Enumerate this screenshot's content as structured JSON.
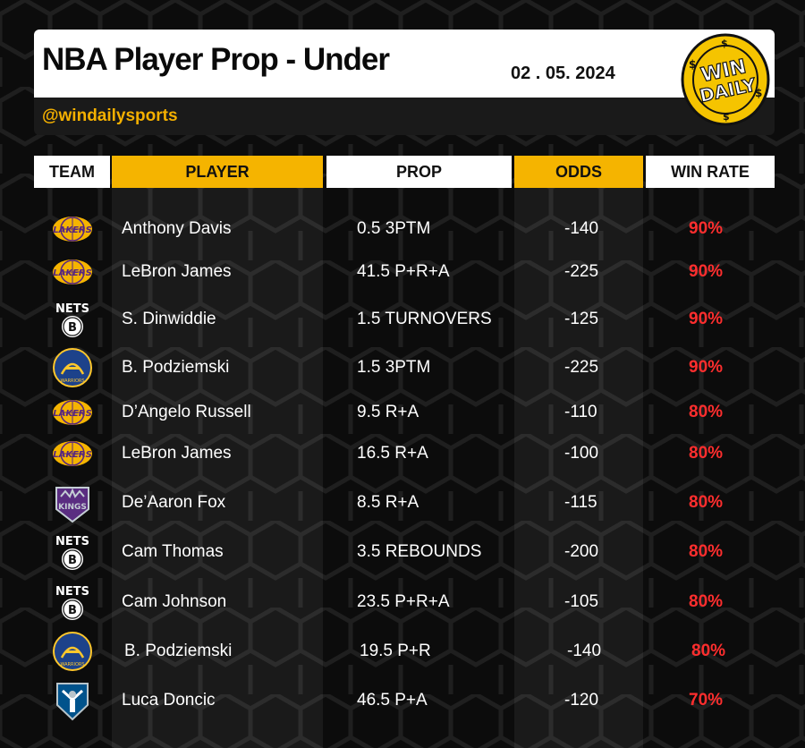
{
  "header": {
    "title": "NBA Player Prop - Under",
    "date": "02 . 05. 2024",
    "handle": "@windailysports",
    "logo_text_line1": "WIN",
    "logo_text_line2": "DAILY"
  },
  "columns": {
    "team": "TEAM",
    "player": "PLAYER",
    "prop": "PROP",
    "odds": "ODDS",
    "win_rate": "WIN RATE"
  },
  "colors": {
    "accent_gold": "#f5b400",
    "rate_red": "#ff2e2e",
    "background": "#0c0c0c"
  },
  "rows": [
    {
      "team": "lakers",
      "player": "Anthony Davis",
      "prop": "0.5 3PTM",
      "odds": "-140",
      "rate": "90%"
    },
    {
      "team": "lakers",
      "player": "LeBron James",
      "prop": "41.5 P+R+A",
      "odds": "-225",
      "rate": "90%"
    },
    {
      "team": "nets",
      "player": "S. Dinwiddie",
      "prop": "1.5 TURNOVERS",
      "odds": "-125",
      "rate": "90%"
    },
    {
      "team": "warriors",
      "player": "B. Podziemski",
      "prop": "1.5 3PTM",
      "odds": "-225",
      "rate": "90%"
    },
    {
      "team": "lakers",
      "player": "D’Angelo Russell",
      "prop": "9.5 R+A",
      "odds": "-110",
      "rate": "80%"
    },
    {
      "team": "lakers",
      "player": "LeBron James",
      "prop": "16.5 R+A",
      "odds": "-100",
      "rate": "80%"
    },
    {
      "team": "kings",
      "player": "De’Aaron Fox",
      "prop": "8.5 R+A",
      "odds": "-115",
      "rate": "80%"
    },
    {
      "team": "nets",
      "player": "Cam Thomas",
      "prop": "3.5 REBOUNDS",
      "odds": "-200",
      "rate": "80%"
    },
    {
      "team": "nets",
      "player": "Cam Johnson",
      "prop": "23.5 P+R+A",
      "odds": "-105",
      "rate": "80%"
    },
    {
      "team": "warriors",
      "player": "B. Podziemski",
      "prop": "19.5 P+R",
      "odds": "-140",
      "rate": "80%"
    },
    {
      "team": "mavericks",
      "player": "Luca Doncic",
      "prop": "46.5 P+A",
      "odds": "-120",
      "rate": "70%"
    }
  ],
  "logo_labels": {
    "lakers": "LAKERS",
    "nets": "NETS",
    "warriors": "WARRIORS",
    "kings": "KINGS"
  }
}
